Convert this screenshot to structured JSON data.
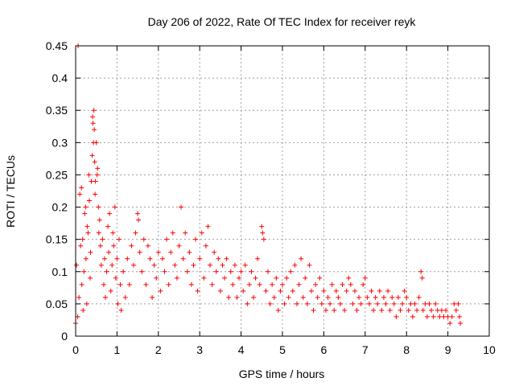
{
  "chart_data": {
    "type": "scatter",
    "title": "Day 206 of 2022, Rate Of TEC Index for receiver reyk",
    "xlabel": "GPS time / hours",
    "ylabel": "ROTI / TECUs",
    "xlim": [
      0,
      10
    ],
    "ylim": [
      0,
      0.45
    ],
    "xticks": [
      0,
      1,
      2,
      3,
      4,
      5,
      6,
      7,
      8,
      9,
      10
    ],
    "yticks": [
      0,
      0.05,
      0.1,
      0.15,
      0.2,
      0.25,
      0.3,
      0.35,
      0.4,
      0.45
    ],
    "xtick_labels": [
      "0",
      "1",
      "2",
      "3",
      "4",
      "5",
      "6",
      "7",
      "8",
      "9",
      "10"
    ],
    "ytick_labels": [
      "0",
      "0.05",
      "0.1",
      "0.15",
      "0.2",
      "0.25",
      "0.3",
      "0.35",
      "0.4",
      "0.45"
    ],
    "grid": true,
    "marker": "+",
    "color": "#ff0000",
    "series": [
      {
        "name": "ROTI",
        "points": [
          [
            0.0,
            0.02
          ],
          [
            0.02,
            0.11
          ],
          [
            0.05,
            0.03
          ],
          [
            0.06,
            0.45
          ],
          [
            0.08,
            0.06
          ],
          [
            0.1,
            0.22
          ],
          [
            0.12,
            0.14
          ],
          [
            0.14,
            0.23
          ],
          [
            0.15,
            0.08
          ],
          [
            0.17,
            0.15
          ],
          [
            0.18,
            0.04
          ],
          [
            0.2,
            0.1
          ],
          [
            0.22,
            0.19
          ],
          [
            0.24,
            0.2
          ],
          [
            0.25,
            0.12
          ],
          [
            0.27,
            0.05
          ],
          [
            0.28,
            0.17
          ],
          [
            0.3,
            0.16
          ],
          [
            0.32,
            0.25
          ],
          [
            0.33,
            0.21
          ],
          [
            0.35,
            0.09
          ],
          [
            0.36,
            0.13
          ],
          [
            0.38,
            0.24
          ],
          [
            0.4,
            0.28
          ],
          [
            0.41,
            0.34
          ],
          [
            0.42,
            0.33
          ],
          [
            0.43,
            0.3
          ],
          [
            0.44,
            0.35
          ],
          [
            0.45,
            0.32
          ],
          [
            0.46,
            0.27
          ],
          [
            0.47,
            0.22
          ],
          [
            0.48,
            0.24
          ],
          [
            0.5,
            0.3
          ],
          [
            0.52,
            0.25
          ],
          [
            0.53,
            0.26
          ],
          [
            0.55,
            0.2
          ],
          [
            0.56,
            0.16
          ],
          [
            0.58,
            0.18
          ],
          [
            0.6,
            0.14
          ],
          [
            0.62,
            0.11
          ],
          [
            0.65,
            0.15
          ],
          [
            0.68,
            0.08
          ],
          [
            0.7,
            0.12
          ],
          [
            0.72,
            0.06
          ],
          [
            0.75,
            0.1
          ],
          [
            0.78,
            0.17
          ],
          [
            0.8,
            0.13
          ],
          [
            0.82,
            0.19
          ],
          [
            0.85,
            0.07
          ],
          [
            0.88,
            0.11
          ],
          [
            0.9,
            0.16
          ],
          [
            0.92,
            0.14
          ],
          [
            0.95,
            0.2
          ],
          [
            0.97,
            0.09
          ],
          [
            1.0,
            0.12
          ],
          [
            1.02,
            0.05
          ],
          [
            1.05,
            0.15
          ],
          [
            1.08,
            0.08
          ],
          [
            1.1,
            0.04
          ],
          [
            1.15,
            0.1
          ],
          [
            1.2,
            0.06
          ],
          [
            1.25,
            0.12
          ],
          [
            1.3,
            0.08
          ],
          [
            1.35,
            0.14
          ],
          [
            1.4,
            0.11
          ],
          [
            1.45,
            0.16
          ],
          [
            1.5,
            0.19
          ],
          [
            1.52,
            0.18
          ],
          [
            1.55,
            0.13
          ],
          [
            1.6,
            0.1
          ],
          [
            1.65,
            0.15
          ],
          [
            1.7,
            0.08
          ],
          [
            1.75,
            0.14
          ],
          [
            1.8,
            0.12
          ],
          [
            1.85,
            0.06
          ],
          [
            1.9,
            0.11
          ],
          [
            1.95,
            0.09
          ],
          [
            2.0,
            0.13
          ],
          [
            2.05,
            0.07
          ],
          [
            2.1,
            0.12
          ],
          [
            2.15,
            0.1
          ],
          [
            2.2,
            0.15
          ],
          [
            2.25,
            0.08
          ],
          [
            2.3,
            0.13
          ],
          [
            2.35,
            0.16
          ],
          [
            2.4,
            0.11
          ],
          [
            2.45,
            0.09
          ],
          [
            2.5,
            0.14
          ],
          [
            2.55,
            0.2
          ],
          [
            2.6,
            0.12
          ],
          [
            2.65,
            0.16
          ],
          [
            2.7,
            0.1
          ],
          [
            2.75,
            0.13
          ],
          [
            2.8,
            0.08
          ],
          [
            2.85,
            0.11
          ],
          [
            2.9,
            0.15
          ],
          [
            2.95,
            0.07
          ],
          [
            3.0,
            0.12
          ],
          [
            3.05,
            0.16
          ],
          [
            3.1,
            0.09
          ],
          [
            3.15,
            0.14
          ],
          [
            3.2,
            0.17
          ],
          [
            3.25,
            0.11
          ],
          [
            3.3,
            0.08
          ],
          [
            3.35,
            0.13
          ],
          [
            3.4,
            0.1
          ],
          [
            3.45,
            0.12
          ],
          [
            3.5,
            0.07
          ],
          [
            3.55,
            0.11
          ],
          [
            3.6,
            0.09
          ],
          [
            3.65,
            0.12
          ],
          [
            3.7,
            0.06
          ],
          [
            3.75,
            0.1
          ],
          [
            3.8,
            0.08
          ],
          [
            3.85,
            0.11
          ],
          [
            3.9,
            0.06
          ],
          [
            3.95,
            0.09
          ],
          [
            4.0,
            0.1
          ],
          [
            4.05,
            0.07
          ],
          [
            4.1,
            0.11
          ],
          [
            4.15,
            0.05
          ],
          [
            4.2,
            0.08
          ],
          [
            4.25,
            0.1
          ],
          [
            4.3,
            0.06
          ],
          [
            4.35,
            0.09
          ],
          [
            4.4,
            0.12
          ],
          [
            4.45,
            0.08
          ],
          [
            4.5,
            0.17
          ],
          [
            4.52,
            0.16
          ],
          [
            4.55,
            0.15
          ],
          [
            4.6,
            0.07
          ],
          [
            4.65,
            0.1
          ],
          [
            4.7,
            0.05
          ],
          [
            4.75,
            0.08
          ],
          [
            4.8,
            0.06
          ],
          [
            4.85,
            0.09
          ],
          [
            4.9,
            0.04
          ],
          [
            4.95,
            0.07
          ],
          [
            5.0,
            0.08
          ],
          [
            5.05,
            0.05
          ],
          [
            5.1,
            0.09
          ],
          [
            5.15,
            0.06
          ],
          [
            5.2,
            0.1
          ],
          [
            5.25,
            0.07
          ],
          [
            5.3,
            0.11
          ],
          [
            5.35,
            0.05
          ],
          [
            5.4,
            0.08
          ],
          [
            5.45,
            0.12
          ],
          [
            5.5,
            0.06
          ],
          [
            5.55,
            0.09
          ],
          [
            5.6,
            0.05
          ],
          [
            5.65,
            0.11
          ],
          [
            5.7,
            0.07
          ],
          [
            5.75,
            0.04
          ],
          [
            5.8,
            0.08
          ],
          [
            5.85,
            0.06
          ],
          [
            5.9,
            0.09
          ],
          [
            5.95,
            0.05
          ],
          [
            6.0,
            0.07
          ],
          [
            6.05,
            0.04
          ],
          [
            6.1,
            0.06
          ],
          [
            6.15,
            0.05
          ],
          [
            6.2,
            0.08
          ],
          [
            6.25,
            0.04
          ],
          [
            6.3,
            0.07
          ],
          [
            6.35,
            0.06
          ],
          [
            6.4,
            0.05
          ],
          [
            6.45,
            0.08
          ],
          [
            6.5,
            0.04
          ],
          [
            6.55,
            0.07
          ],
          [
            6.6,
            0.09
          ],
          [
            6.65,
            0.08
          ],
          [
            6.7,
            0.05
          ],
          [
            6.75,
            0.07
          ],
          [
            6.8,
            0.04
          ],
          [
            6.85,
            0.06
          ],
          [
            6.9,
            0.05
          ],
          [
            6.95,
            0.08
          ],
          [
            7.0,
            0.09
          ],
          [
            7.05,
            0.06
          ],
          [
            7.1,
            0.05
          ],
          [
            7.15,
            0.07
          ],
          [
            7.2,
            0.04
          ],
          [
            7.25,
            0.06
          ],
          [
            7.3,
            0.05
          ],
          [
            7.35,
            0.07
          ],
          [
            7.4,
            0.04
          ],
          [
            7.45,
            0.06
          ],
          [
            7.5,
            0.05
          ],
          [
            7.55,
            0.07
          ],
          [
            7.6,
            0.04
          ],
          [
            7.65,
            0.06
          ],
          [
            7.7,
            0.05
          ],
          [
            7.75,
            0.03
          ],
          [
            7.8,
            0.06
          ],
          [
            7.85,
            0.04
          ],
          [
            7.9,
            0.05
          ],
          [
            7.95,
            0.07
          ],
          [
            8.0,
            0.06
          ],
          [
            8.05,
            0.04
          ],
          [
            8.1,
            0.05
          ],
          [
            8.15,
            0.03
          ],
          [
            8.2,
            0.05
          ],
          [
            8.25,
            0.04
          ],
          [
            8.3,
            0.06
          ],
          [
            8.35,
            0.1
          ],
          [
            8.38,
            0.09
          ],
          [
            8.4,
            0.04
          ],
          [
            8.45,
            0.05
          ],
          [
            8.5,
            0.03
          ],
          [
            8.55,
            0.05
          ],
          [
            8.6,
            0.04
          ],
          [
            8.65,
            0.03
          ],
          [
            8.7,
            0.05
          ],
          [
            8.75,
            0.04
          ],
          [
            8.8,
            0.03
          ],
          [
            8.85,
            0.04
          ],
          [
            8.9,
            0.03
          ],
          [
            8.95,
            0.04
          ],
          [
            9.0,
            0.03
          ],
          [
            9.05,
            0.02
          ],
          [
            9.1,
            0.03
          ],
          [
            9.15,
            0.05
          ],
          [
            9.2,
            0.04
          ],
          [
            9.25,
            0.05
          ],
          [
            9.28,
            0.03
          ],
          [
            9.3,
            0.02
          ]
        ]
      }
    ]
  }
}
